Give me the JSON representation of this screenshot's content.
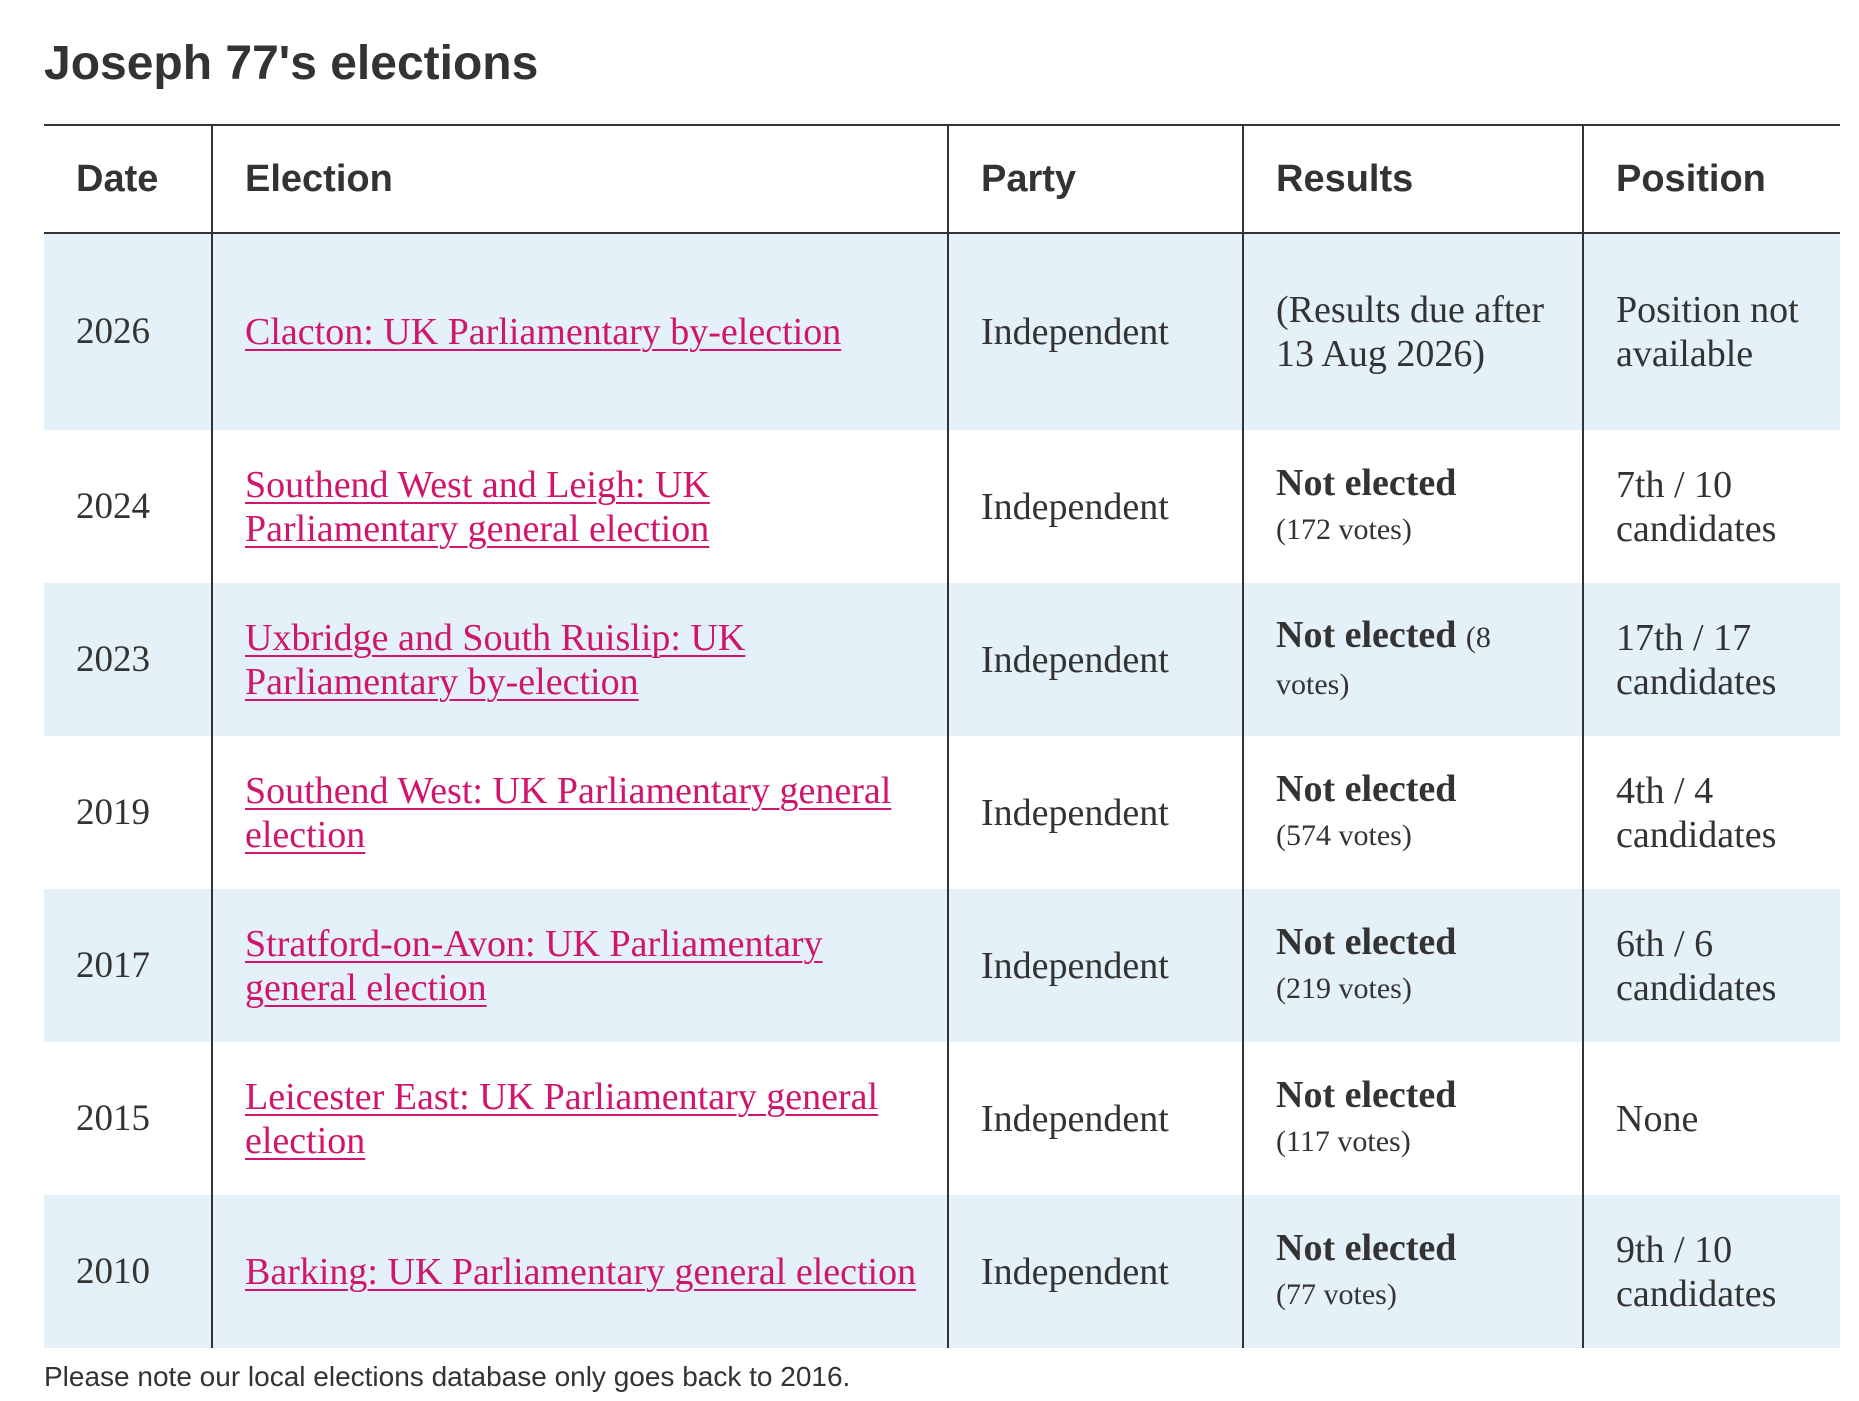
{
  "page": {
    "title": "Joseph 77's elections",
    "note": "Please note our local elections database only goes back to 2016."
  },
  "table": {
    "headers": {
      "date": "Date",
      "election": "Election",
      "party": "Party",
      "results": "Results",
      "position": "Position"
    },
    "rows": [
      {
        "date": "2026",
        "election": "Clacton: UK Parliamentary by-election",
        "party": "Independent",
        "result_status": "(Results due after 13 Aug 2026)",
        "result_votes": "",
        "position": "Position not available"
      },
      {
        "date": "2024",
        "election": "Southend West and Leigh: UK Parliamentary general election",
        "party": "Independent",
        "result_status": "Not elected",
        "result_votes": "(172 votes)",
        "position": "7th / 10 candidates"
      },
      {
        "date": "2023",
        "election": "Uxbridge and South Ruislip: UK Parliamentary by-election",
        "party": "Independent",
        "result_status": "Not elected",
        "result_votes": "(8 votes)",
        "position": "17th / 17 candidates"
      },
      {
        "date": "2019",
        "election": "Southend West: UK Parliamentary general election",
        "party": "Independent",
        "result_status": "Not elected",
        "result_votes": "(574 votes)",
        "position": "4th / 4 candidates"
      },
      {
        "date": "2017",
        "election": "Stratford-on-Avon: UK Parliamentary general election",
        "party": "Independent",
        "result_status": "Not elected",
        "result_votes": "(219 votes)",
        "position": "6th / 6 candidates"
      },
      {
        "date": "2015",
        "election": "Leicester East: UK Parliamentary general election",
        "party": "Independent",
        "result_status": "Not elected",
        "result_votes": "(117 votes)",
        "position": "None"
      },
      {
        "date": "2010",
        "election": "Barking: UK Parliamentary general election",
        "party": "Independent",
        "result_status": "Not elected",
        "result_votes": "(77 votes)",
        "position": "9th / 10 candidates"
      }
    ]
  },
  "colors": {
    "link": "#d0156c",
    "stripe": "#e4f1f9",
    "text": "#333333",
    "border": "#333333"
  }
}
